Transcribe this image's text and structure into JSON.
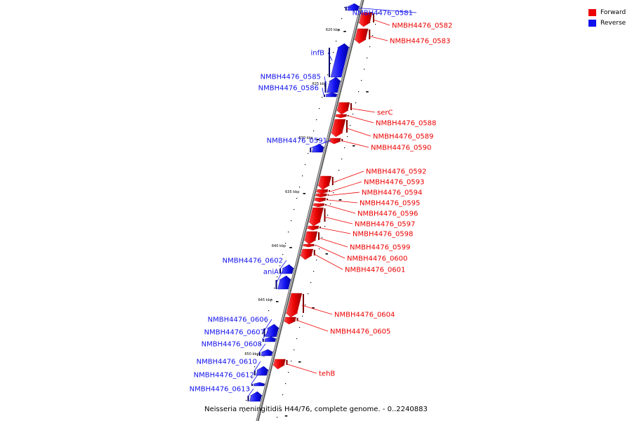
{
  "colors": {
    "forward": "#ee0000",
    "reverse": "#1010ee",
    "backbone": "#9a9a9a"
  },
  "legend": [
    {
      "label": "Forward",
      "color": "#ee0000"
    },
    {
      "label": "Reverse",
      "color": "#1010ee"
    }
  ],
  "caption": "Neisseria meningitidis H44/76, complete genome. - 0..2240883",
  "ticks": [
    "620 kbp",
    "625 kbp",
    "630 kbp",
    "635 kbp",
    "640 kbp",
    "645 kbp",
    "650 kbp"
  ],
  "genes": [
    {
      "label": "NMBH4476_0581",
      "strand": "reverse"
    },
    {
      "label": "NMBH4476_0582",
      "strand": "forward"
    },
    {
      "label": "NMBH4476_0583",
      "strand": "forward"
    },
    {
      "label": "infB",
      "strand": "reverse"
    },
    {
      "label": "NMBH4476_0585",
      "strand": "reverse"
    },
    {
      "label": "NMBH4476_0586",
      "strand": "reverse"
    },
    {
      "label": "serC",
      "strand": "forward"
    },
    {
      "label": "NMBH4476_0588",
      "strand": "forward"
    },
    {
      "label": "NMBH4476_0589",
      "strand": "forward"
    },
    {
      "label": "NMBH4476_0590",
      "strand": "forward"
    },
    {
      "label": "NMBH4476_0591",
      "strand": "reverse"
    },
    {
      "label": "NMBH4476_0592",
      "strand": "forward"
    },
    {
      "label": "NMBH4476_0593",
      "strand": "forward"
    },
    {
      "label": "NMBH4476_0594",
      "strand": "forward"
    },
    {
      "label": "NMBH4476_0595",
      "strand": "forward"
    },
    {
      "label": "NMBH4476_0596",
      "strand": "forward"
    },
    {
      "label": "NMBH4476_0597",
      "strand": "forward"
    },
    {
      "label": "NMBH4476_0598",
      "strand": "forward"
    },
    {
      "label": "NMBH4476_0599",
      "strand": "forward"
    },
    {
      "label": "NMBH4476_0600",
      "strand": "forward"
    },
    {
      "label": "NMBH4476_0601",
      "strand": "forward"
    },
    {
      "label": "NMBH4476_0602",
      "strand": "reverse"
    },
    {
      "label": "aniA",
      "strand": "reverse"
    },
    {
      "label": "NMBH4476_0604",
      "strand": "forward"
    },
    {
      "label": "NMBH4476_0605",
      "strand": "forward"
    },
    {
      "label": "NMBH4476_0606",
      "strand": "reverse"
    },
    {
      "label": "NMBH4476_0607",
      "strand": "reverse"
    },
    {
      "label": "NMBH4476_0608",
      "strand": "reverse"
    },
    {
      "label": "NMBH4476_0610",
      "strand": "reverse"
    },
    {
      "label": "NMBH4476_0612",
      "strand": "reverse"
    },
    {
      "label": "NMBH4476_0613",
      "strand": "reverse"
    },
    {
      "label": "tehB",
      "strand": "forward"
    }
  ]
}
